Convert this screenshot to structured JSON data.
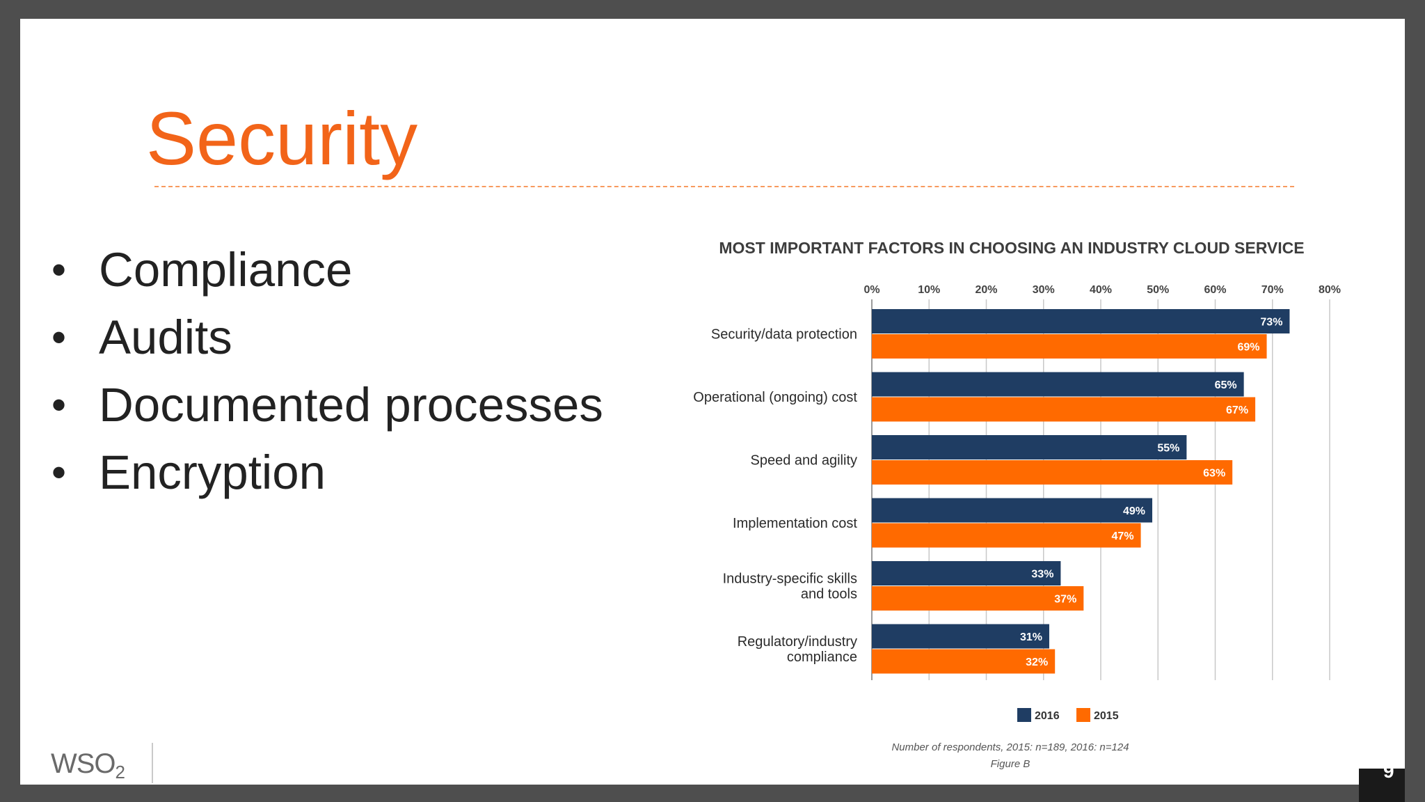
{
  "slide": {
    "title": "Security",
    "bullets": [
      "Compliance",
      "Audits",
      "Documented processes",
      "Encryption"
    ],
    "page_number": "9",
    "logo_text": "WSO",
    "logo_subscript": "2"
  },
  "chart_data": {
    "type": "bar",
    "orientation": "horizontal",
    "title": "MOST IMPORTANT FACTORS IN CHOOSING AN INDUSTRY CLOUD SERVICE",
    "categories": [
      [
        "Security/data protection"
      ],
      [
        "Operational (ongoing) cost"
      ],
      [
        "Speed and agility"
      ],
      [
        "Implementation cost"
      ],
      [
        "Industry-specific skills",
        "and tools"
      ],
      [
        "Regulatory/industry",
        "compliance"
      ]
    ],
    "series": [
      {
        "name": "2016",
        "color": "#1f3d63",
        "values": [
          73,
          65,
          55,
          49,
          33,
          31
        ]
      },
      {
        "name": "2015",
        "color": "#ff6a00",
        "values": [
          69,
          67,
          63,
          47,
          37,
          32
        ]
      }
    ],
    "xlim": [
      0,
      80
    ],
    "xticks": [
      0,
      10,
      20,
      30,
      40,
      50,
      60,
      70,
      80
    ],
    "tick_suffix": "%",
    "grid": true,
    "legend_position": "bottom",
    "footnote": "Number of respondents, 2015: n=189, 2016: n=124",
    "figure_label": "Figure B"
  }
}
